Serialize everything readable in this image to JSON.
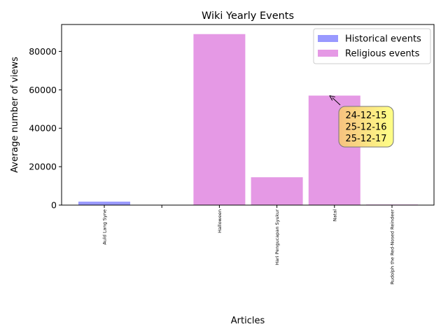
{
  "chart_data": {
    "type": "bar",
    "title": "Wiki Yearly Events",
    "xlabel": "Articles",
    "ylabel": "Average number of views",
    "ylim": [
      0,
      94000
    ],
    "yticks": [
      0,
      20000,
      40000,
      60000,
      80000
    ],
    "grid": false,
    "legend_position": "top-right",
    "categories": [
      "Auld Lang Syne",
      "",
      "Halloween",
      "Hari Pengucapan Syukur",
      "Natal",
      "Rudolph the Red-Nosed Reindeer"
    ],
    "series": [
      {
        "name": "Historical events",
        "color": "#9999ff",
        "values": [
          1800,
          null,
          null,
          null,
          null,
          null
        ]
      },
      {
        "name": "Religious events",
        "color": "#e599e5",
        "values": [
          null,
          null,
          89000,
          14500,
          57000,
          300
        ]
      }
    ],
    "annotations": [
      {
        "target_category": "Natal",
        "target_value": 57000,
        "lines": [
          "24-12-15",
          "25-12-16",
          "25-12-17"
        ],
        "box_color": "#ffff80"
      }
    ]
  }
}
